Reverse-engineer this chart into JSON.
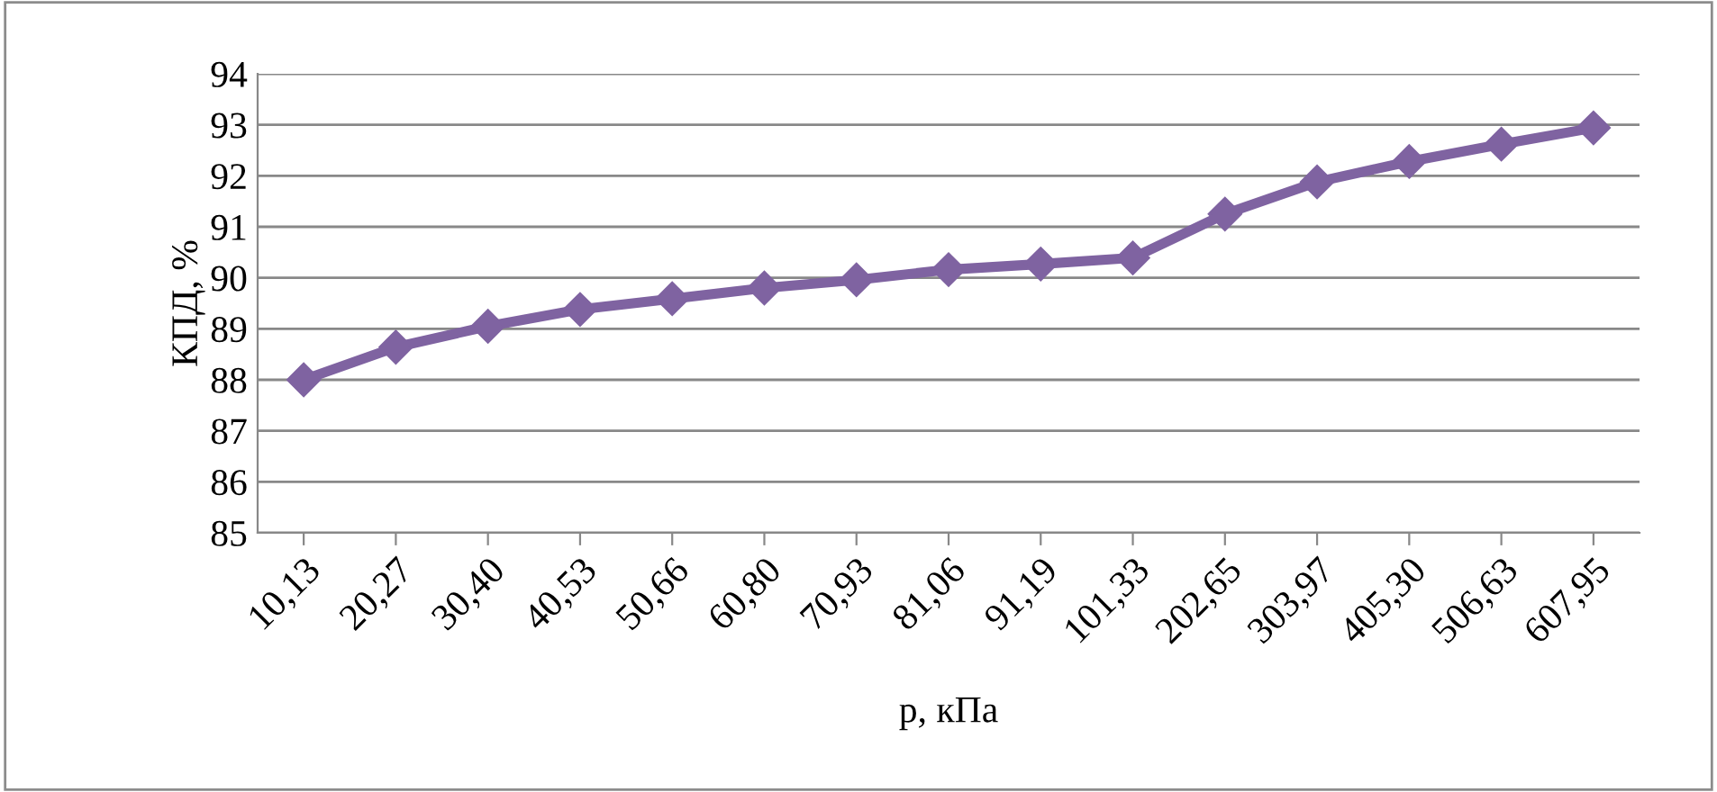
{
  "chart_data": {
    "type": "line",
    "xlabel": "p, кПа",
    "ylabel": "КПД, %",
    "categories": [
      "10,13",
      "20,27",
      "30,40",
      "40,53",
      "50,66",
      "60,80",
      "70,93",
      "81,06",
      "91,19",
      "101,33",
      "202,65",
      "303,97",
      "405,30",
      "506,63",
      "607,95"
    ],
    "series": [
      {
        "color": "#7f63a1",
        "values": [
          88.0,
          88.64,
          89.05,
          89.38,
          89.59,
          89.8,
          89.96,
          90.16,
          90.27,
          90.39,
          91.25,
          91.88,
          92.28,
          92.62,
          92.94
        ]
      }
    ],
    "ylim": [
      85,
      94
    ],
    "yticks": [
      85,
      86,
      87,
      88,
      89,
      90,
      91,
      92,
      93,
      94
    ],
    "grid": "y",
    "marker": "diamond",
    "line_style": "solid",
    "legend": false
  }
}
